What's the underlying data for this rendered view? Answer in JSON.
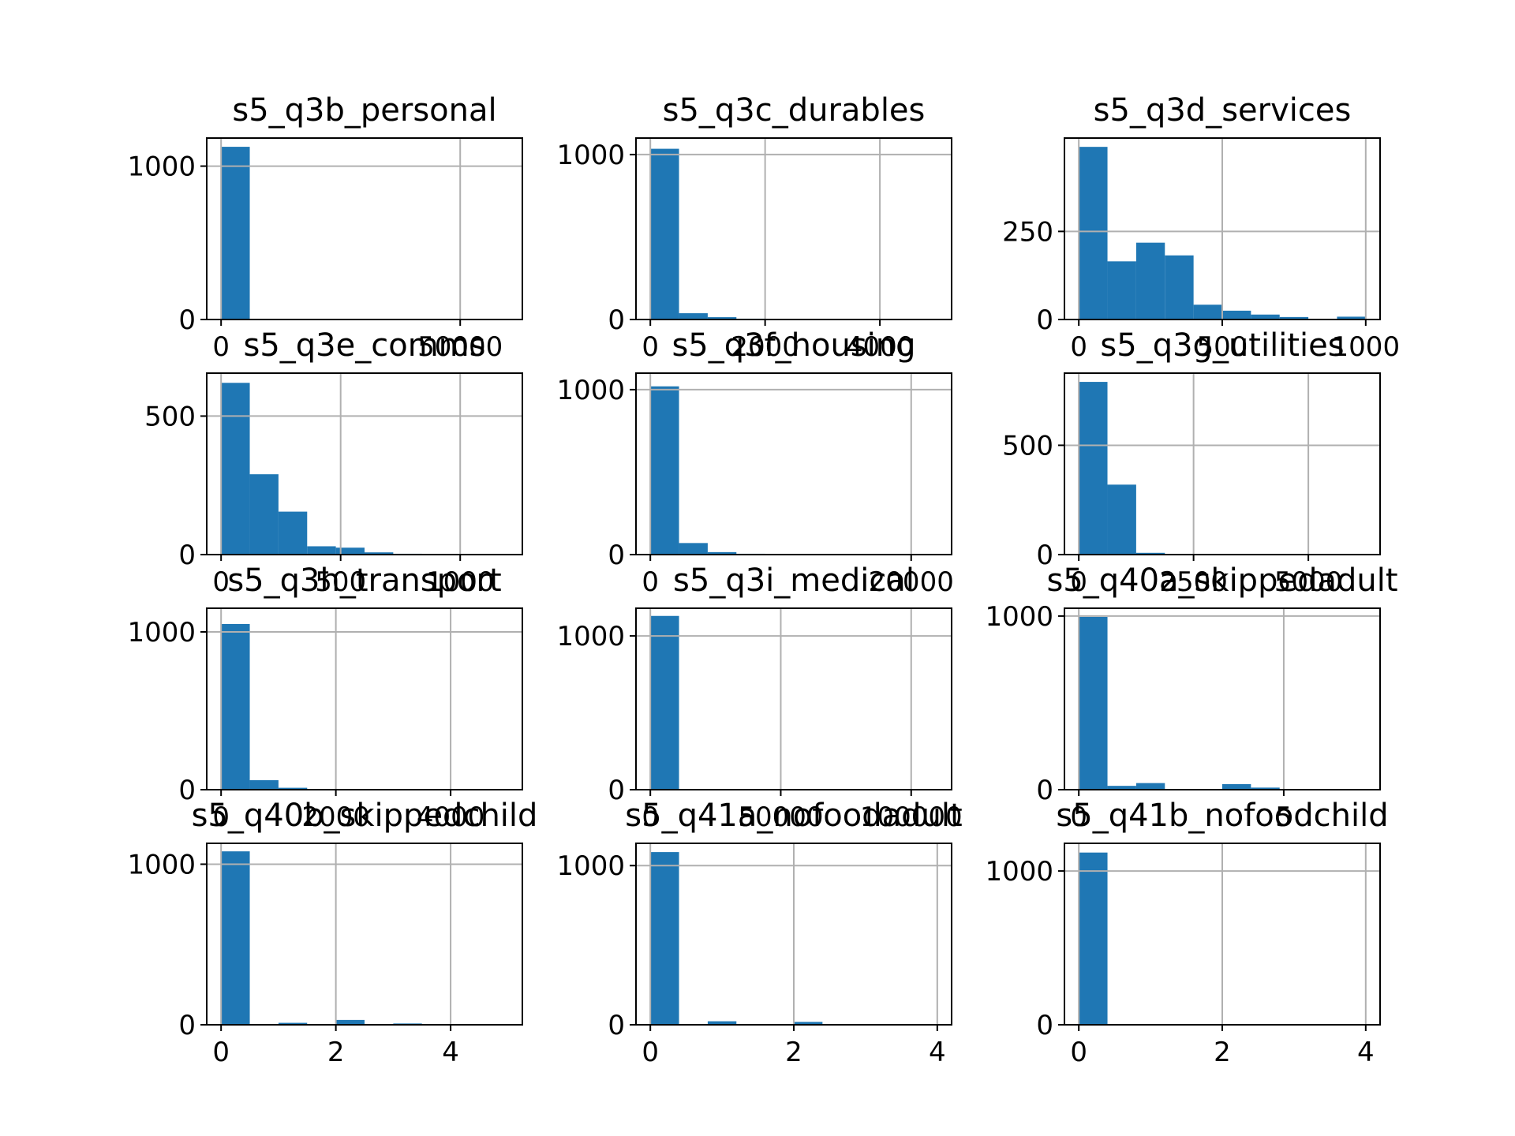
{
  "chart_data": [
    {
      "type": "bar",
      "title": "s5_q3b_personal",
      "bin_edges": [
        0,
        6000,
        12000,
        18000,
        24000,
        30000,
        36000,
        42000,
        48000,
        54000,
        60000
      ],
      "counts": [
        1126,
        0,
        0,
        0,
        0,
        0,
        0,
        0,
        0,
        0
      ],
      "xlim": [
        -3000,
        63000
      ],
      "ylim": [
        0,
        1183
      ],
      "xticks": [
        0,
        50000
      ],
      "xtick_labels": [
        "0",
        "50000"
      ],
      "yticks": [
        0,
        1000
      ],
      "ytick_labels": [
        "0",
        "1000"
      ],
      "grid": true
    },
    {
      "type": "bar",
      "title": "s5_q3c_durables",
      "bin_edges": [
        0,
        500,
        1000,
        1500,
        2000,
        2500,
        3000,
        3500,
        4000,
        4500,
        5000
      ],
      "counts": [
        1035,
        38,
        14,
        5,
        0,
        0,
        0,
        0,
        0,
        0
      ],
      "xlim": [
        -250,
        5250
      ],
      "ylim": [
        0,
        1100
      ],
      "xticks": [
        0,
        2000,
        4000
      ],
      "xtick_labels": [
        "0",
        "2000",
        "4000"
      ],
      "yticks": [
        0,
        1000
      ],
      "ytick_labels": [
        "0",
        "1000"
      ],
      "grid": true
    },
    {
      "type": "bar",
      "title": "s5_q3d_services",
      "bin_edges": [
        0,
        100,
        200,
        300,
        400,
        500,
        600,
        700,
        800,
        900,
        1000
      ],
      "counts": [
        490,
        165,
        218,
        182,
        42,
        25,
        14,
        7,
        2,
        8
      ],
      "xlim": [
        -50,
        1050
      ],
      "ylim": [
        0,
        515
      ],
      "xticks": [
        0,
        500,
        1000
      ],
      "xtick_labels": [
        "0",
        "500",
        "1000"
      ],
      "yticks": [
        0,
        250
      ],
      "ytick_labels": [
        "0",
        "250"
      ],
      "grid": true
    },
    {
      "type": "bar",
      "title": "s5_q3e_comms",
      "bin_edges": [
        0,
        120,
        240,
        360,
        480,
        600,
        720,
        840,
        960,
        1080,
        1200
      ],
      "counts": [
        620,
        290,
        155,
        30,
        25,
        8,
        3,
        2,
        1,
        1
      ],
      "xlim": [
        -60,
        1260
      ],
      "ylim": [
        0,
        655
      ],
      "xticks": [
        0,
        500,
        1000
      ],
      "xtick_labels": [
        "0",
        "500",
        "1000"
      ],
      "yticks": [
        0,
        500
      ],
      "ytick_labels": [
        "0",
        "500"
      ],
      "grid": true
    },
    {
      "type": "bar",
      "title": "s5_q3f_housing",
      "bin_edges": [
        0,
        2200,
        4400,
        6600,
        8800,
        11000,
        13200,
        15400,
        17600,
        19800,
        22000
      ],
      "counts": [
        1020,
        70,
        15,
        5,
        2,
        0,
        0,
        0,
        0,
        0
      ],
      "xlim": [
        -1100,
        23100
      ],
      "ylim": [
        0,
        1100
      ],
      "xticks": [
        0,
        20000
      ],
      "xtick_labels": [
        "0",
        "20000"
      ],
      "yticks": [
        0,
        1000
      ],
      "ytick_labels": [
        "0",
        "1000"
      ],
      "grid": true
    },
    {
      "type": "bar",
      "title": "s5_q3g_utilities",
      "bin_edges": [
        0,
        625,
        1250,
        1875,
        2500,
        3125,
        3750,
        4375,
        5000,
        5625,
        6250
      ],
      "counts": [
        790,
        320,
        8,
        2,
        0,
        0,
        0,
        0,
        0,
        0
      ],
      "xlim": [
        -312,
        6562
      ],
      "ylim": [
        0,
        830
      ],
      "xticks": [
        0,
        2500,
        5000
      ],
      "xtick_labels": [
        "0",
        "2500",
        "5000"
      ],
      "yticks": [
        0,
        500
      ],
      "ytick_labels": [
        "0",
        "500"
      ],
      "grid": true
    },
    {
      "type": "bar",
      "title": "s5_q3h_transport",
      "bin_edges": [
        0,
        500,
        1000,
        1500,
        2000,
        2500,
        3000,
        3500,
        4000,
        4500,
        5000
      ],
      "counts": [
        1050,
        60,
        12,
        0,
        0,
        0,
        0,
        0,
        0,
        0
      ],
      "xlim": [
        -250,
        5250
      ],
      "ylim": [
        0,
        1150
      ],
      "xticks": [
        0,
        2000,
        4000
      ],
      "xtick_labels": [
        "0",
        "2000",
        "4000"
      ],
      "yticks": [
        0,
        1000
      ],
      "ytick_labels": [
        "0",
        "1000"
      ],
      "grid": true
    },
    {
      "type": "bar",
      "title": "s5_q3i_medical",
      "bin_edges": [
        0,
        11000,
        22000,
        33000,
        44000,
        55000,
        66000,
        77000,
        88000,
        99000,
        110000
      ],
      "counts": [
        1130,
        0,
        0,
        0,
        0,
        0,
        0,
        0,
        0,
        0
      ],
      "xlim": [
        -5500,
        115500
      ],
      "ylim": [
        0,
        1180
      ],
      "xticks": [
        0,
        50000,
        100000
      ],
      "xtick_labels": [
        "0",
        "50000",
        "100000"
      ],
      "yticks": [
        0,
        1000
      ],
      "ytick_labels": [
        "0",
        "1000"
      ],
      "grid": true
    },
    {
      "type": "bar",
      "title": "s5_q40a_skippedadult",
      "bin_edges": [
        0,
        0.7,
        1.4,
        2.1,
        2.8,
        3.5,
        4.2,
        4.9,
        5.6,
        6.3,
        7.0
      ],
      "counts": [
        995,
        22,
        38,
        0,
        0,
        32,
        12,
        0,
        0,
        0
      ],
      "xlim": [
        -0.35,
        7.35
      ],
      "ylim": [
        0,
        1045
      ],
      "xticks": [
        0,
        5
      ],
      "xtick_labels": [
        "0",
        "5"
      ],
      "yticks": [
        0,
        1000
      ],
      "ytick_labels": [
        "0",
        "1000"
      ],
      "grid": true
    },
    {
      "type": "bar",
      "title": "s5_q40b_skippedchild",
      "bin_edges": [
        0,
        0.5,
        1.0,
        1.5,
        2.0,
        2.5,
        3.0,
        3.5,
        4.0,
        4.5,
        5.0
      ],
      "counts": [
        1080,
        0,
        12,
        0,
        30,
        0,
        8,
        0,
        0,
        2
      ],
      "xlim": [
        -0.25,
        5.25
      ],
      "ylim": [
        0,
        1130
      ],
      "xticks": [
        0,
        2,
        4
      ],
      "xtick_labels": [
        "0",
        "2",
        "4"
      ],
      "yticks": [
        0,
        1000
      ],
      "ytick_labels": [
        "0",
        "1000"
      ],
      "grid": true
    },
    {
      "type": "bar",
      "title": "s5_q41a_nofoodadult",
      "bin_edges": [
        0,
        0.4,
        0.8,
        1.2,
        1.6,
        2.0,
        2.4,
        2.8,
        3.2,
        3.6,
        4.0
      ],
      "counts": [
        1085,
        0,
        22,
        0,
        0,
        18,
        0,
        0,
        0,
        2
      ],
      "xlim": [
        -0.2,
        4.2
      ],
      "ylim": [
        0,
        1140
      ],
      "xticks": [
        0,
        2,
        4
      ],
      "xtick_labels": [
        "0",
        "2",
        "4"
      ],
      "yticks": [
        0,
        1000
      ],
      "ytick_labels": [
        "0",
        "1000"
      ],
      "grid": true
    },
    {
      "type": "bar",
      "title": "s5_q41b_nofoodchild",
      "bin_edges": [
        0,
        0.4,
        0.8,
        1.2,
        1.6,
        2.0,
        2.4,
        2.8,
        3.2,
        3.6,
        4.0
      ],
      "counts": [
        1120,
        0,
        0,
        0,
        0,
        0,
        0,
        0,
        0,
        0
      ],
      "xlim": [
        -0.2,
        4.2
      ],
      "ylim": [
        0,
        1180
      ],
      "xticks": [
        0,
        2,
        4
      ],
      "xtick_labels": [
        "0",
        "2",
        "4"
      ],
      "yticks": [
        0,
        1000
      ],
      "ytick_labels": [
        "0",
        "1000"
      ],
      "grid": true
    }
  ],
  "colors": {
    "bar": "#1f77b4",
    "grid": "#b0b0b0",
    "axes": "#000000"
  }
}
